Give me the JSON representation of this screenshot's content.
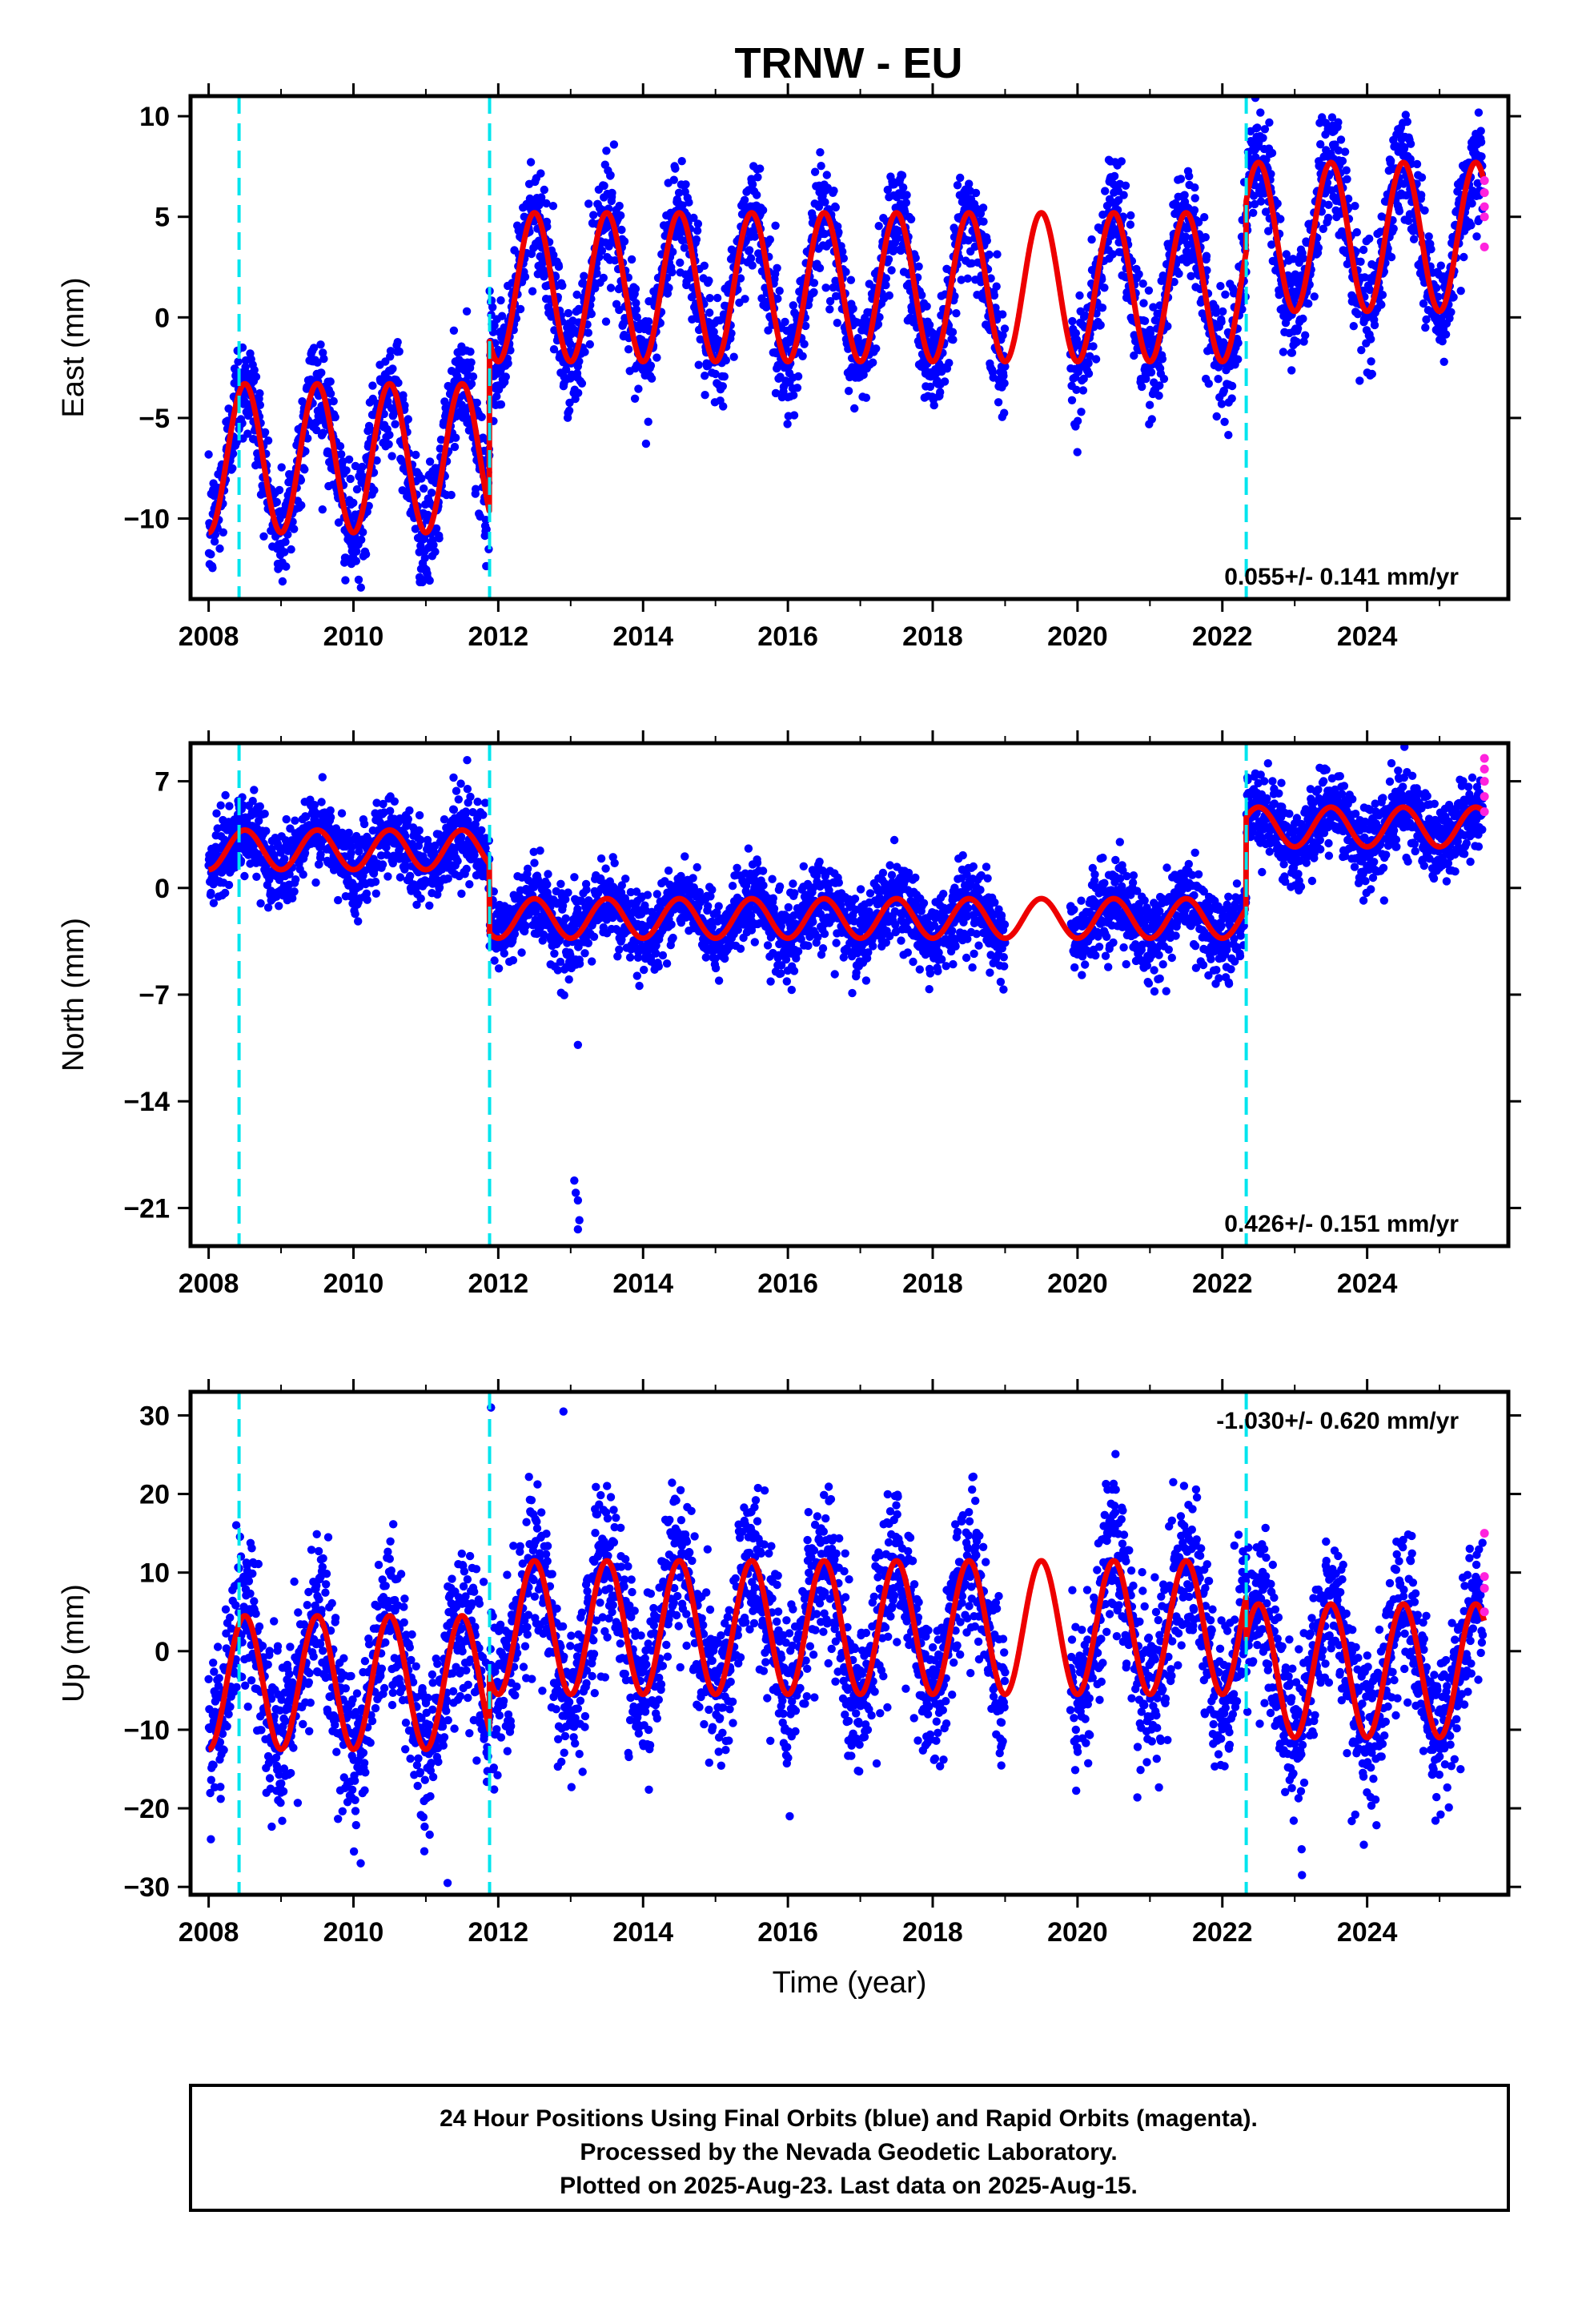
{
  "title": "TRNW - EU",
  "footer": {
    "lines": [
      "24 Hour Positions Using Final Orbits (blue) and Rapid Orbits (magenta).",
      "Processed by the Nevada Geodetic Laboratory.",
      "Plotted on 2025-Aug-23. Last data on 2025-Aug-15."
    ]
  },
  "colors": {
    "final_orbits": "#0000ff",
    "rapid_orbits": "#ff22dd",
    "model": "#ee0000",
    "equipment_change": "#00e5ee"
  },
  "chart_data": [
    {
      "type": "scatter",
      "title": "",
      "xlabel": "",
      "ylabel": "East (mm)",
      "xlim": [
        2007.75,
        2025.95
      ],
      "ylim": [
        -14,
        11
      ],
      "xticks": [
        2008,
        2010,
        2012,
        2014,
        2016,
        2018,
        2020,
        2022,
        2024
      ],
      "yticks": [
        -10,
        -5,
        0,
        5,
        10
      ],
      "grid": false,
      "rate_text": "0.055+/- 0.141 mm/yr",
      "rate_position": "bottom-right",
      "steps": [
        2008.42,
        2011.88,
        2022.33
      ],
      "model": {
        "annual_amplitude": 3.7,
        "segments": [
          {
            "start": 2008.0,
            "end": 2011.88,
            "mean": -7.0
          },
          {
            "start": 2011.88,
            "end": 2022.33,
            "mean": 1.5
          },
          {
            "start": 2022.33,
            "end": 2025.62,
            "mean": 4.0
          }
        ],
        "fit": [
          {
            "x": 2008.0,
            "y": -10.3
          },
          {
            "x": 2008.5,
            "y": -3.3
          },
          {
            "x": 2009.0,
            "y": -10.7
          },
          {
            "x": 2009.5,
            "y": -3.3
          },
          {
            "x": 2010.0,
            "y": -10.7
          },
          {
            "x": 2010.5,
            "y": -3.3
          },
          {
            "x": 2011.0,
            "y": -10.7
          },
          {
            "x": 2011.5,
            "y": -3.3
          },
          {
            "x": 2011.87,
            "y": -10.5
          },
          {
            "x": 2011.89,
            "y": -2.5
          },
          {
            "x": 2012.5,
            "y": 5.0
          },
          {
            "x": 2013.0,
            "y": -2.3
          },
          {
            "x": 2013.5,
            "y": 5.0
          },
          {
            "x": 2014.0,
            "y": -2.3
          },
          {
            "x": 2014.5,
            "y": 5.0
          },
          {
            "x": 2018.5,
            "y": 5.2
          },
          {
            "x": 2019.5,
            "y": 5.4
          },
          {
            "x": 2021.5,
            "y": 5.4
          },
          {
            "x": 2022.0,
            "y": -2.2
          },
          {
            "x": 2022.32,
            "y": 1.5
          },
          {
            "x": 2022.5,
            "y": 7.8
          },
          {
            "x": 2023.0,
            "y": 0.3
          },
          {
            "x": 2023.5,
            "y": 7.8
          },
          {
            "x": 2024.0,
            "y": 0.3
          },
          {
            "x": 2024.5,
            "y": 7.8
          },
          {
            "x": 2025.0,
            "y": 0.3
          },
          {
            "x": 2025.5,
            "y": 7.8
          },
          {
            "x": 2025.62,
            "y": 4.8
          }
        ]
      },
      "data_gap": [
        2019.0,
        2019.9
      ],
      "noise": 1.4,
      "rapid_points": [
        {
          "x": 2025.62,
          "y": 6.8
        },
        {
          "x": 2025.62,
          "y": 6.2
        },
        {
          "x": 2025.62,
          "y": 5.5
        },
        {
          "x": 2025.62,
          "y": 5.0
        },
        {
          "x": 2025.62,
          "y": 3.5
        }
      ],
      "outliers": []
    },
    {
      "type": "scatter",
      "title": "",
      "xlabel": "",
      "ylabel": "North (mm)",
      "xlim": [
        2007.75,
        2025.95
      ],
      "ylim": [
        -23.5,
        9.5
      ],
      "xticks": [
        2008,
        2010,
        2012,
        2014,
        2016,
        2018,
        2020,
        2022,
        2024
      ],
      "yticks": [
        -21,
        -14,
        -7,
        0,
        7
      ],
      "ytick_labels": [
        "−21",
        "−14",
        "−7",
        "0",
        "7"
      ],
      "grid": false,
      "rate_text": "0.426+/- 0.151 mm/yr",
      "rate_position": "bottom-right",
      "steps": [
        2008.42,
        2011.88,
        2022.33
      ],
      "model": {
        "annual_amplitude": 1.3,
        "segments": [
          {
            "start": 2008.0,
            "end": 2011.88,
            "mean": 2.5
          },
          {
            "start": 2011.88,
            "end": 2022.33,
            "mean": -2.0
          },
          {
            "start": 2022.33,
            "end": 2025.62,
            "mean": 4.0
          }
        ],
        "fit": [
          {
            "x": 2008.0,
            "y": 1.5
          },
          {
            "x": 2008.5,
            "y": 3.7
          },
          {
            "x": 2011.5,
            "y": 5.0
          },
          {
            "x": 2011.87,
            "y": 2.5
          },
          {
            "x": 2011.89,
            "y": -4.2
          },
          {
            "x": 2013.5,
            "y": -1.3
          },
          {
            "x": 2015.0,
            "y": -3.0
          },
          {
            "x": 2019.5,
            "y": 1.3
          },
          {
            "x": 2021.0,
            "y": -1.0
          },
          {
            "x": 2022.32,
            "y": -1.0
          },
          {
            "x": 2022.5,
            "y": 5.5
          },
          {
            "x": 2024.5,
            "y": 6.2
          },
          {
            "x": 2025.62,
            "y": 6.6
          }
        ]
      },
      "data_gap": [
        2019.0,
        2019.9
      ],
      "noise": 1.3,
      "rapid_points": [
        {
          "x": 2025.62,
          "y": 8.5
        },
        {
          "x": 2025.62,
          "y": 7.8
        },
        {
          "x": 2025.62,
          "y": 7.0
        },
        {
          "x": 2025.62,
          "y": 6.0
        },
        {
          "x": 2025.62,
          "y": 5.0
        }
      ],
      "outliers": [
        {
          "x": 2013.1,
          "y": -10.3
        },
        {
          "x": 2013.05,
          "y": -19.2
        },
        {
          "x": 2013.07,
          "y": -20.0
        },
        {
          "x": 2013.1,
          "y": -20.5
        },
        {
          "x": 2013.12,
          "y": -21.8
        },
        {
          "x": 2013.1,
          "y": -22.4
        }
      ]
    },
    {
      "type": "scatter",
      "title": "",
      "xlabel": "Time (year)",
      "ylabel": "Up (mm)",
      "xlim": [
        2007.75,
        2025.95
      ],
      "ylim": [
        -31,
        33
      ],
      "xticks": [
        2008,
        2010,
        2012,
        2014,
        2016,
        2018,
        2020,
        2022,
        2024
      ],
      "yticks": [
        -30,
        -20,
        -10,
        0,
        10,
        20,
        30
      ],
      "ytick_labels": [
        "−30",
        "−20",
        "−10",
        "0",
        "10",
        "20",
        "30"
      ],
      "grid": false,
      "rate_text": "-1.030+/- 0.620 mm/yr",
      "rate_position": "top-right",
      "steps": [
        2008.42,
        2011.88,
        2022.33
      ],
      "model": {
        "annual_amplitude": 8.5,
        "segments": [
          {
            "start": 2008.0,
            "end": 2011.88,
            "mean": -4.0
          },
          {
            "start": 2011.88,
            "end": 2022.33,
            "mean": 3.0
          },
          {
            "start": 2022.33,
            "end": 2025.62,
            "mean": -2.5
          }
        ],
        "fit": [
          {
            "x": 2008.0,
            "y": -9.8
          },
          {
            "x": 2008.5,
            "y": 5.5
          },
          {
            "x": 2009.0,
            "y": -11.5
          },
          {
            "x": 2011.2,
            "y": -13.5
          },
          {
            "x": 2011.87,
            "y": -10.0
          },
          {
            "x": 2012.6,
            "y": 16.5
          },
          {
            "x": 2013.0,
            "y": -0.5
          },
          {
            "x": 2013.6,
            "y": 15.5
          },
          {
            "x": 2015.6,
            "y": 13.5
          },
          {
            "x": 2019.6,
            "y": 9.5
          },
          {
            "x": 2021.0,
            "y": -8.5
          },
          {
            "x": 2022.2,
            "y": -9.5
          },
          {
            "x": 2022.6,
            "y": 7.0
          },
          {
            "x": 2023.1,
            "y": -10.5
          },
          {
            "x": 2025.1,
            "y": -12.0
          },
          {
            "x": 2025.62,
            "y": 3.5
          }
        ]
      },
      "data_gap": [
        2019.0,
        2019.9
      ],
      "noise": 5.0,
      "rapid_points": [
        {
          "x": 2025.62,
          "y": 15.0
        },
        {
          "x": 2025.62,
          "y": 9.5
        },
        {
          "x": 2025.62,
          "y": 8.0
        },
        {
          "x": 2025.62,
          "y": 5.0
        }
      ],
      "outliers": [
        {
          "x": 2011.9,
          "y": 31.0
        },
        {
          "x": 2012.9,
          "y": 30.5
        },
        {
          "x": 2011.3,
          "y": -29.5
        },
        {
          "x": 2023.1,
          "y": -28.5
        },
        {
          "x": 2010.1,
          "y": -27.0
        }
      ]
    }
  ]
}
